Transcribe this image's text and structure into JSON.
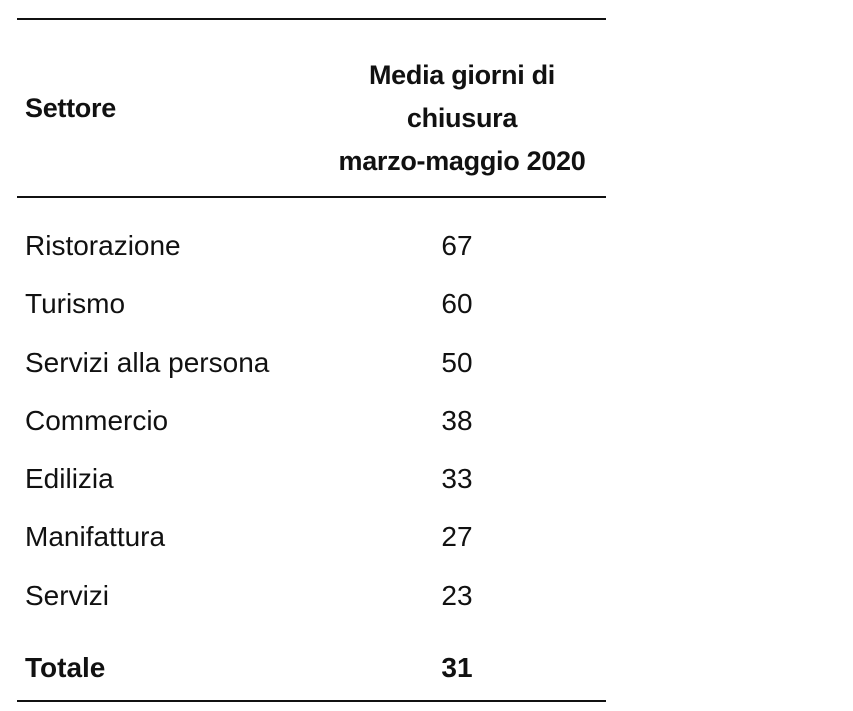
{
  "table": {
    "header": {
      "sector": "Settore",
      "value_line1": "Media giorni di",
      "value_line2": "chiusura",
      "value_line3": "marzo-maggio 2020"
    },
    "rows": [
      {
        "sector": "Ristorazione",
        "value": "67"
      },
      {
        "sector": "Turismo",
        "value": "60"
      },
      {
        "sector": "Servizi alla persona",
        "value": "50"
      },
      {
        "sector": "Commercio",
        "value": "38"
      },
      {
        "sector": "Edilizia",
        "value": "33"
      },
      {
        "sector": "Manifattura",
        "value": "27"
      },
      {
        "sector": "Servizi",
        "value": "23"
      }
    ],
    "total": {
      "sector": "Totale",
      "value": "31"
    }
  }
}
